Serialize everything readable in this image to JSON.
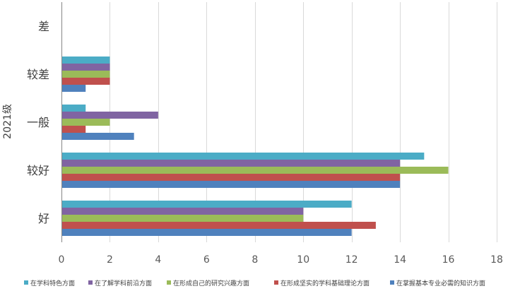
{
  "chart_data": {
    "type": "bar",
    "orientation": "horizontal",
    "ylabel": "2021级",
    "xlim": [
      0,
      18
    ],
    "x_ticks": [
      "0",
      "2",
      "4",
      "6",
      "8",
      "10",
      "12",
      "14",
      "16",
      "18"
    ],
    "grid": "vertical",
    "legend_position": "bottom",
    "categories": [
      "好",
      "较好",
      "一般",
      "较差",
      "差"
    ],
    "series": [
      {
        "name": "在掌握基本专业必需的知识方面",
        "color": "#4f81bd",
        "values": [
          12,
          14,
          3,
          1,
          0
        ]
      },
      {
        "name": "在形成坚实的学科基础理论方面",
        "color": "#c0504d",
        "values": [
          13,
          14,
          1,
          2,
          0
        ]
      },
      {
        "name": "在形成自己的研究兴趣方面",
        "color": "#9bbb59",
        "values": [
          10,
          16,
          2,
          2,
          0
        ]
      },
      {
        "name": "在了解学科前沿方面",
        "color": "#8064a2",
        "values": [
          10,
          14,
          4,
          2,
          0
        ]
      },
      {
        "name": "在学科特色方面",
        "color": "#4bacc6",
        "values": [
          12,
          15,
          1,
          2,
          0
        ]
      }
    ],
    "legend_order": [
      4,
      3,
      2,
      1,
      0
    ]
  }
}
